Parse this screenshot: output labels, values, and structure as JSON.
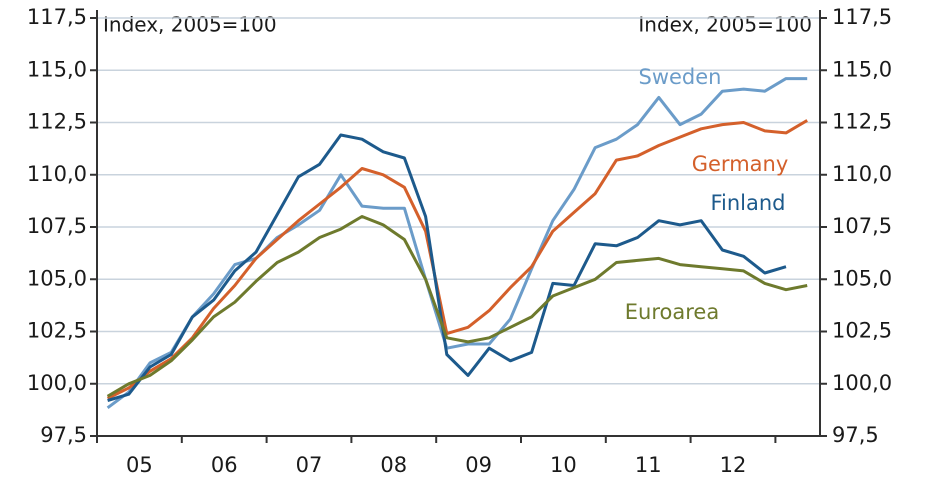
{
  "chart_data": {
    "type": "line",
    "ylabel": "Index, 2005=100",
    "y2label": "Index, 2005=100",
    "categories": [
      null,
      "05",
      null,
      null,
      null,
      "06",
      null,
      null,
      null,
      "07",
      null,
      null,
      null,
      "08",
      null,
      null,
      null,
      "09",
      null,
      null,
      null,
      "10",
      null,
      null,
      null,
      "11",
      null,
      null,
      null,
      "12",
      null,
      null,
      null,
      null
    ],
    "ylim": [
      97.5,
      117.5
    ],
    "yticks": [
      {
        "value": 97.5,
        "label": "97,5"
      },
      {
        "value": 100,
        "label": "100,0"
      },
      {
        "value": 102.5,
        "label": "102,5"
      },
      {
        "value": 105,
        "label": "105,0"
      },
      {
        "value": 107.5,
        "label": "107,5"
      },
      {
        "value": 110,
        "label": "110,0"
      },
      {
        "value": 112.5,
        "label": "112,5"
      },
      {
        "value": 115,
        "label": "115,0"
      },
      {
        "value": 117.5,
        "label": "117,5"
      }
    ],
    "grid": true,
    "series": [
      {
        "name": "Sweden",
        "color": "#6b9cc9",
        "values": [
          98.85,
          99.6,
          101.0,
          101.5,
          103.2,
          104.3,
          105.7,
          106.0,
          107.0,
          107.6,
          108.3,
          110.0,
          108.5,
          108.4,
          108.4,
          105.0,
          101.7,
          101.9,
          101.9,
          103.1,
          105.5,
          107.8,
          109.3,
          111.3,
          111.7,
          112.4,
          113.7,
          112.4,
          112.9,
          114.0,
          114.1,
          114.0,
          114.6,
          114.6
        ]
      },
      {
        "name": "Germany",
        "color": "#d4602b",
        "values": [
          99.3,
          99.8,
          100.6,
          101.2,
          102.2,
          103.6,
          104.7,
          106.0,
          106.9,
          107.8,
          108.6,
          109.4,
          110.3,
          110.0,
          109.4,
          107.3,
          102.4,
          102.7,
          103.5,
          104.6,
          105.6,
          107.3,
          108.2,
          109.1,
          110.7,
          110.9,
          111.4,
          111.8,
          112.2,
          112.4,
          112.5,
          112.1,
          112.0,
          112.6
        ]
      },
      {
        "name": "Finland",
        "color": "#1d5a8c",
        "values": [
          99.2,
          99.5,
          100.8,
          101.4,
          103.2,
          104.0,
          105.4,
          106.3,
          108.1,
          109.9,
          110.5,
          111.9,
          111.7,
          111.1,
          110.8,
          108.0,
          101.4,
          100.4,
          101.7,
          101.1,
          101.5,
          104.8,
          104.7,
          106.7,
          106.6,
          107.0,
          107.8,
          107.6,
          107.8,
          106.4,
          106.1,
          105.3,
          105.6,
          null
        ]
      },
      {
        "name": "Euroarea",
        "color": "#6e7a2d",
        "values": [
          99.4,
          100.0,
          100.4,
          101.1,
          102.1,
          103.2,
          103.9,
          104.9,
          105.8,
          106.3,
          107.0,
          107.4,
          108.0,
          107.6,
          106.9,
          105.0,
          102.2,
          102.0,
          102.2,
          102.7,
          103.2,
          104.2,
          104.6,
          105.0,
          105.8,
          105.9,
          106.0,
          105.7,
          105.6,
          105.5,
          105.4,
          104.8,
          104.5,
          104.7
        ]
      }
    ]
  }
}
